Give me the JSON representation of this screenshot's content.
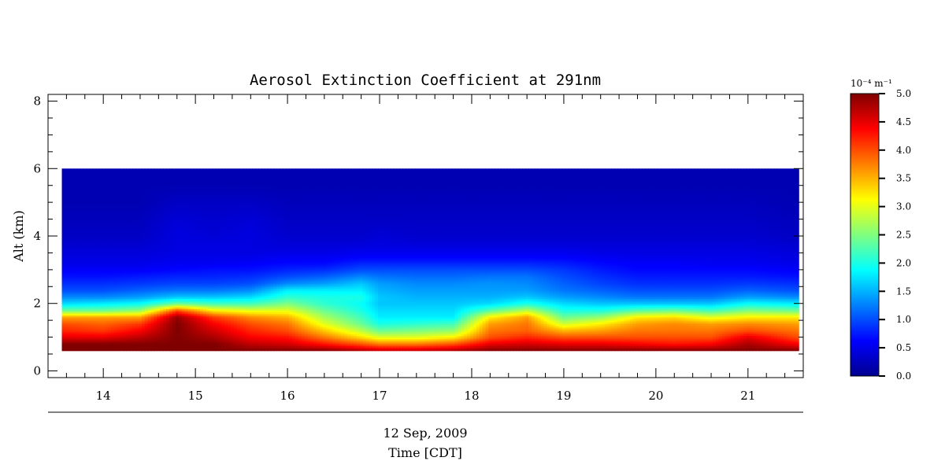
{
  "chart_data": {
    "type": "heatmap",
    "title": "Aerosol Extinction Coefficient at 291nm",
    "ylabel": "Alt (km)",
    "date_label": "12 Sep, 2009",
    "xlabel": "Time [CDT]",
    "x_range": [
      13.4,
      21.6
    ],
    "y_range": [
      -0.2,
      8.2
    ],
    "x_ticks": [
      "14",
      "15",
      "16",
      "17",
      "18",
      "19",
      "20",
      "21"
    ],
    "y_ticks": [
      "0",
      "2",
      "4",
      "6",
      "8"
    ],
    "data_extent": {
      "x": [
        13.55,
        21.55
      ],
      "y": [
        0.6,
        6.0
      ]
    },
    "colorscale": "jet",
    "color_range": [
      0.0,
      5.0
    ],
    "colorbar_unit": "10⁻⁴ m⁻¹",
    "colorbar_ticks": [
      "0.0",
      "0.5",
      "1.0",
      "1.5",
      "2.0",
      "2.5",
      "3.0",
      "3.5",
      "4.0",
      "4.5",
      "5.0"
    ],
    "profile_times": [
      13.55,
      14.0,
      14.4,
      14.8,
      15.2,
      15.6,
      16.0,
      16.4,
      16.8,
      17.0,
      17.4,
      17.8,
      18.2,
      18.6,
      19.0,
      19.4,
      19.8,
      20.2,
      20.6,
      21.0,
      21.55
    ],
    "profile_altitudes": [
      0.6,
      0.8,
      1.0,
      1.2,
      1.4,
      1.6,
      1.8,
      2.0,
      2.2,
      2.4,
      2.6,
      2.8,
      3.0,
      3.2,
      3.4,
      3.6,
      3.8,
      4.0,
      4.5,
      5.0,
      5.5,
      6.0
    ],
    "values": [
      [
        5.0,
        5.0,
        4.5,
        4.2,
        4.0,
        3.6,
        2.4,
        1.7,
        1.3,
        1.0,
        0.85,
        0.7,
        0.6,
        0.5,
        0.45,
        0.4,
        0.35,
        0.3,
        0.25,
        0.2,
        0.2,
        0.2
      ],
      [
        5.0,
        5.0,
        4.5,
        4.1,
        3.9,
        3.6,
        2.4,
        1.8,
        1.3,
        1.0,
        0.85,
        0.7,
        0.6,
        0.5,
        0.45,
        0.4,
        0.35,
        0.3,
        0.25,
        0.2,
        0.2,
        0.2
      ],
      [
        5.0,
        5.0,
        4.7,
        4.4,
        4.1,
        3.6,
        2.6,
        1.9,
        1.4,
        1.1,
        0.9,
        0.75,
        0.6,
        0.5,
        0.45,
        0.4,
        0.35,
        0.3,
        0.25,
        0.2,
        0.2,
        0.2
      ],
      [
        5.0,
        5.0,
        5.0,
        5.0,
        5.0,
        4.9,
        4.0,
        2.4,
        1.6,
        1.2,
        0.95,
        0.8,
        0.65,
        0.55,
        0.5,
        0.45,
        0.45,
        0.45,
        0.4,
        0.3,
        0.2,
        0.2
      ],
      [
        5.0,
        5.0,
        4.8,
        4.6,
        4.4,
        4.1,
        3.2,
        2.2,
        1.6,
        1.2,
        0.95,
        0.8,
        0.7,
        0.55,
        0.5,
        0.45,
        0.45,
        0.4,
        0.35,
        0.3,
        0.2,
        0.2
      ],
      [
        5.0,
        4.7,
        4.4,
        4.2,
        4.0,
        3.7,
        3.0,
        2.2,
        1.7,
        1.3,
        1.0,
        0.85,
        0.7,
        0.6,
        0.5,
        0.45,
        0.45,
        0.45,
        0.4,
        0.3,
        0.2,
        0.2
      ],
      [
        5.0,
        4.6,
        4.3,
        4.0,
        3.8,
        3.5,
        3.0,
        2.5,
        2.1,
        1.8,
        1.3,
        1.0,
        0.8,
        0.65,
        0.55,
        0.45,
        0.4,
        0.35,
        0.3,
        0.25,
        0.2,
        0.2
      ],
      [
        5.0,
        4.3,
        3.8,
        3.4,
        3.0,
        2.7,
        2.4,
        2.1,
        2.0,
        1.8,
        1.4,
        1.1,
        0.85,
        0.65,
        0.55,
        0.45,
        0.4,
        0.35,
        0.3,
        0.25,
        0.2,
        0.2
      ],
      [
        4.8,
        4.0,
        3.3,
        2.8,
        2.4,
        2.2,
        2.0,
        1.9,
        2.0,
        1.8,
        1.6,
        1.3,
        1.0,
        0.8,
        0.6,
        0.5,
        0.4,
        0.35,
        0.3,
        0.25,
        0.2,
        0.2
      ],
      [
        4.7,
        3.8,
        3.0,
        2.4,
        2.0,
        1.8,
        1.7,
        1.6,
        1.6,
        1.5,
        1.4,
        1.2,
        1.0,
        0.8,
        0.6,
        0.5,
        0.45,
        0.4,
        0.3,
        0.25,
        0.2,
        0.2
      ],
      [
        4.7,
        3.8,
        3.0,
        2.5,
        2.1,
        1.8,
        1.7,
        1.6,
        1.5,
        1.4,
        1.3,
        1.15,
        1.0,
        0.8,
        0.6,
        0.5,
        0.4,
        0.35,
        0.3,
        0.25,
        0.2,
        0.2
      ],
      [
        4.8,
        4.0,
        3.2,
        2.6,
        2.2,
        1.8,
        1.7,
        1.6,
        1.5,
        1.4,
        1.3,
        1.15,
        1.0,
        0.8,
        0.6,
        0.5,
        0.4,
        0.35,
        0.3,
        0.25,
        0.2,
        0.2
      ],
      [
        5.0,
        4.5,
        4.0,
        3.8,
        3.6,
        3.2,
        2.3,
        1.7,
        1.5,
        1.4,
        1.35,
        1.2,
        1.0,
        0.8,
        0.6,
        0.5,
        0.4,
        0.35,
        0.3,
        0.25,
        0.2,
        0.2
      ],
      [
        5.0,
        4.6,
        4.2,
        3.9,
        3.8,
        3.6,
        2.8,
        2.0,
        1.6,
        1.4,
        1.3,
        1.2,
        1.0,
        0.8,
        0.6,
        0.5,
        0.4,
        0.35,
        0.3,
        0.25,
        0.2,
        0.2
      ],
      [
        5.0,
        4.5,
        4.0,
        3.5,
        2.9,
        2.4,
        2.0,
        1.7,
        1.4,
        1.2,
        1.1,
        1.0,
        0.9,
        0.75,
        0.6,
        0.5,
        0.4,
        0.35,
        0.3,
        0.25,
        0.2,
        0.2
      ],
      [
        5.0,
        4.5,
        4.0,
        3.6,
        3.2,
        2.6,
        2.0,
        1.6,
        1.3,
        1.1,
        0.95,
        0.85,
        0.75,
        0.65,
        0.55,
        0.45,
        0.4,
        0.35,
        0.3,
        0.25,
        0.2,
        0.2
      ],
      [
        5.0,
        4.4,
        4.0,
        3.8,
        3.6,
        3.2,
        2.3,
        1.6,
        1.2,
        1.0,
        0.85,
        0.75,
        0.65,
        0.6,
        0.5,
        0.45,
        0.4,
        0.35,
        0.3,
        0.25,
        0.2,
        0.2
      ],
      [
        5.0,
        4.3,
        4.0,
        3.8,
        3.7,
        3.3,
        2.4,
        1.6,
        1.2,
        1.0,
        0.85,
        0.75,
        0.65,
        0.6,
        0.5,
        0.45,
        0.4,
        0.35,
        0.3,
        0.25,
        0.2,
        0.2
      ],
      [
        5.0,
        4.4,
        4.0,
        3.8,
        3.6,
        3.0,
        2.2,
        1.6,
        1.2,
        1.0,
        0.85,
        0.75,
        0.65,
        0.55,
        0.5,
        0.45,
        0.4,
        0.35,
        0.3,
        0.25,
        0.2,
        0.2
      ],
      [
        5.0,
        4.8,
        4.5,
        4.0,
        3.7,
        3.2,
        2.5,
        1.9,
        1.4,
        1.1,
        0.9,
        0.75,
        0.65,
        0.55,
        0.5,
        0.45,
        0.4,
        0.35,
        0.3,
        0.25,
        0.2,
        0.2
      ],
      [
        5.0,
        4.4,
        4.0,
        3.8,
        3.6,
        3.2,
        2.4,
        1.8,
        1.3,
        1.0,
        0.85,
        0.7,
        0.6,
        0.5,
        0.45,
        0.4,
        0.35,
        0.3,
        0.25,
        0.2,
        0.2,
        0.2
      ]
    ]
  }
}
